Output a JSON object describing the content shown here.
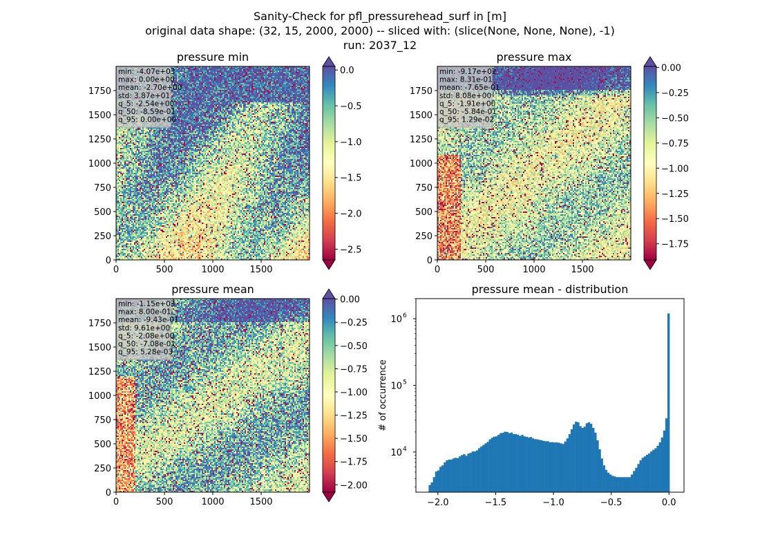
{
  "figure": {
    "title_lines": [
      "Sanity-Check for pfl_pressurehead_surf in [m]",
      "original data shape: (32, 15, 2000, 2000) -- sliced with: (slice(None, None, None), -1)",
      "run: 2037_12"
    ]
  },
  "chart_data": [
    {
      "type": "heatmap",
      "title": "pressure min",
      "xlim": [
        0,
        2000
      ],
      "ylim": [
        0,
        2000
      ],
      "xticks": [
        0,
        500,
        1000,
        1500
      ],
      "yticks": [
        0,
        250,
        500,
        750,
        1000,
        1250,
        1500,
        1750
      ],
      "colormap": "Spectral",
      "colorbar": {
        "min": -2.65,
        "max": 0.05,
        "ticks": [
          0.0,
          -0.5,
          -1.0,
          -1.5,
          -2.0,
          -2.5
        ],
        "tick_labels": [
          "0.0",
          "−0.5",
          "−1.0",
          "−1.5",
          "−2.0",
          "−2.5"
        ],
        "extend": "both",
        "extend_top_color": "#5e4fa2",
        "extend_bottom_color": "#9e0142"
      },
      "stats": [
        "min: -4.07e+03",
        "max: 0.00e+00",
        "mean: -2.70e+00",
        "std: 3.87e+01",
        "q_5: -2.54e+00",
        "q_50: -8.59e-01",
        "q_95: 0.00e+00"
      ]
    },
    {
      "type": "heatmap",
      "title": "pressure max",
      "xlim": [
        0,
        2000
      ],
      "ylim": [
        0,
        2000
      ],
      "xticks": [
        0,
        500,
        1000,
        1500
      ],
      "yticks": [
        0,
        250,
        500,
        750,
        1000,
        1250,
        1500,
        1750
      ],
      "colormap": "Spectral",
      "colorbar": {
        "min": -1.91,
        "max": 0.01,
        "ticks": [
          0.0,
          -0.25,
          -0.5,
          -0.75,
          -1.0,
          -1.25,
          -1.5,
          -1.75
        ],
        "tick_labels": [
          "0.00",
          "−0.25",
          "−0.50",
          "−0.75",
          "−1.00",
          "−1.25",
          "−1.50",
          "−1.75"
        ],
        "extend": "both",
        "extend_top_color": "#5e4fa2",
        "extend_bottom_color": "#9e0142"
      },
      "stats": [
        "min: -9.17e+02",
        "max: 8.31e-01",
        "mean: -7.65e-01",
        "std: 8.08e+00",
        "q_5: -1.91e+00",
        "q_50: -5.84e-01",
        "q_95: 1.29e-02"
      ]
    },
    {
      "type": "heatmap",
      "title": "pressure mean",
      "xlim": [
        0,
        2000
      ],
      "ylim": [
        0,
        2000
      ],
      "xticks": [
        0,
        500,
        1000,
        1500
      ],
      "yticks": [
        0,
        250,
        500,
        750,
        1000,
        1250,
        1500,
        1750
      ],
      "colormap": "Spectral",
      "colorbar": {
        "min": -2.08,
        "max": 0.005,
        "ticks": [
          0.0,
          -0.25,
          -0.5,
          -0.75,
          -1.0,
          -1.25,
          -1.5,
          -1.75,
          -2.0
        ],
        "tick_labels": [
          "0.00",
          "−0.25",
          "−0.50",
          "−0.75",
          "−1.00",
          "−1.25",
          "−1.50",
          "−1.75",
          "−2.00"
        ],
        "extend": "both",
        "extend_top_color": "#5e4fa2",
        "extend_bottom_color": "#9e0142"
      },
      "stats": [
        "min: -1.15e+03",
        "max: 8.00e-01",
        "mean: -9.43e-01",
        "std: 9.61e+00",
        "q_5: -2.08e+00",
        "q_50: -7.08e-01",
        "q_95: 5.28e-03"
      ]
    },
    {
      "type": "bar",
      "title": "pressure mean - distribution",
      "ylabel": "# of occurrence",
      "yscale": "log",
      "xlim": [
        -2.19,
        0.13
      ],
      "ylim": [
        2500,
        2000000
      ],
      "xticks": [
        -2.0,
        -1.5,
        -1.0,
        -0.5,
        0.0
      ],
      "xtick_labels": [
        "−2.0",
        "−1.5",
        "−1.0",
        "−0.5",
        "0.0"
      ],
      "yticks": [
        10000,
        100000,
        1000000
      ],
      "ytick_labels": [
        "10",
        "10",
        "10"
      ],
      "ytick_exponents": [
        "4",
        "5",
        "6"
      ],
      "color": "#1f77b4",
      "bin_range": [
        -2.08,
        0.005
      ],
      "counts": [
        3200,
        3500,
        4200,
        5100,
        5300,
        6000,
        6300,
        7000,
        7500,
        7700,
        7700,
        8000,
        8200,
        8100,
        8600,
        9000,
        9300,
        8800,
        9500,
        9700,
        10200,
        10200,
        10600,
        11400,
        12100,
        12800,
        13500,
        14200,
        15500,
        16400,
        17000,
        17200,
        18100,
        19200,
        19400,
        20200,
        20000,
        19200,
        19600,
        18600,
        18600,
        18100,
        17500,
        18100,
        17200,
        16900,
        16500,
        16800,
        16000,
        15600,
        15500,
        15200,
        15000,
        14700,
        14500,
        14500,
        14000,
        14100,
        13900,
        14000,
        13800,
        13500,
        13200,
        14400,
        16000,
        18500,
        22000,
        26000,
        28500,
        28000,
        24500,
        23000,
        24000,
        27000,
        28000,
        26500,
        23000,
        19500,
        15000,
        11000,
        8000,
        6300,
        5400,
        4900,
        4600,
        4400,
        4300,
        4200,
        4200,
        4200,
        4200,
        4200,
        4200,
        4200,
        4600,
        5200,
        5800,
        6600,
        7500,
        8200,
        8600,
        9100,
        9500,
        10200,
        10800,
        11400,
        12400,
        14000,
        16500,
        21000,
        32000,
        1200000
      ]
    }
  ]
}
